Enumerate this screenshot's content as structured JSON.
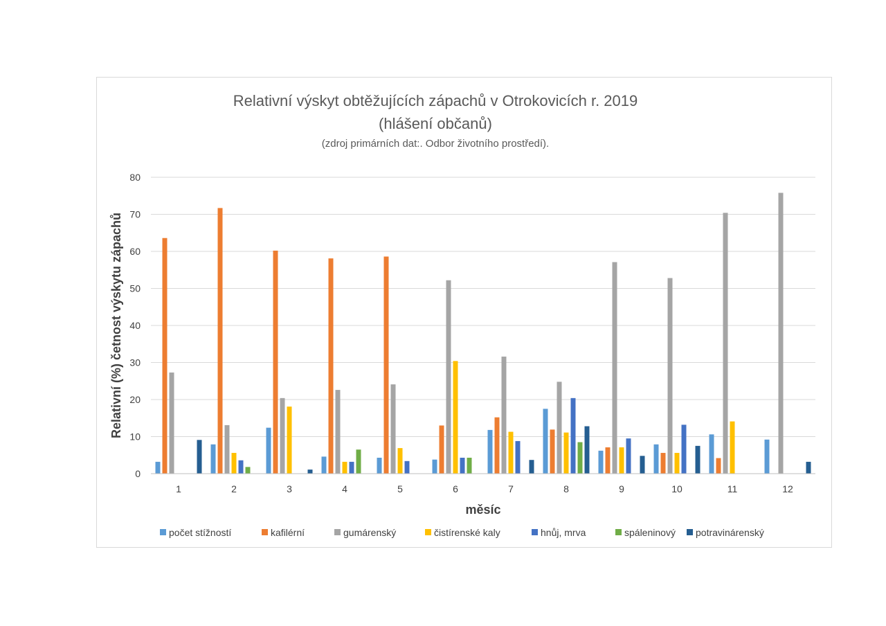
{
  "chart_data": {
    "type": "bar",
    "title": "Relativní výskyt  obtěžujících zápachů v Otrokovicích r. 2019",
    "subtitle": "(hlášení občanů)",
    "source_note": "(zdroj primárních dat:. Odbor životního prostředí).",
    "xlabel": "měsíc",
    "ylabel": "Relativní (%) četnost výskytu zápachů",
    "ylim": [
      0,
      80
    ],
    "yticks": [
      0,
      10,
      20,
      30,
      40,
      50,
      60,
      70,
      80
    ],
    "grid": true,
    "legend_position": "bottom",
    "categories": [
      "1",
      "2",
      "3",
      "4",
      "5",
      "6",
      "7",
      "8",
      "9",
      "10",
      "11",
      "12"
    ],
    "series": [
      {
        "name": "počet stížností",
        "color": "#5b9bd5",
        "values": [
          3.2,
          7.9,
          12.4,
          4.6,
          4.3,
          3.8,
          11.8,
          17.5,
          6.2,
          7.9,
          10.6,
          9.2
        ]
      },
      {
        "name": "kafilérní",
        "color": "#ed7d31",
        "values": [
          63.6,
          71.7,
          60.2,
          58.1,
          58.6,
          13.0,
          15.2,
          11.9,
          7.1,
          5.6,
          4.2,
          0
        ]
      },
      {
        "name": "gumárenský",
        "color": "#a5a5a5",
        "values": [
          27.3,
          13.1,
          20.4,
          22.6,
          24.1,
          52.2,
          31.6,
          24.8,
          57.1,
          52.8,
          70.4,
          75.8
        ]
      },
      {
        "name": "čistírenské kaly",
        "color": "#ffc000",
        "values": [
          0,
          5.6,
          18.1,
          3.2,
          6.9,
          30.4,
          11.3,
          11.1,
          7.1,
          5.6,
          14.1,
          0
        ]
      },
      {
        "name": "hnůj, mrva",
        "color": "#4472c4",
        "values": [
          0,
          3.6,
          0,
          3.2,
          3.4,
          4.3,
          8.8,
          20.4,
          9.5,
          13.2,
          0,
          0
        ]
      },
      {
        "name": "spáleninový",
        "color": "#70ad47",
        "values": [
          0,
          1.8,
          0,
          6.5,
          0,
          4.3,
          0,
          8.5,
          0,
          0,
          0,
          0
        ]
      },
      {
        "name": "potravinárenský",
        "color": "#255e91",
        "values": [
          9.1,
          0,
          1.1,
          0,
          0,
          0,
          3.7,
          12.8,
          4.8,
          7.5,
          0,
          3.2
        ]
      }
    ]
  }
}
